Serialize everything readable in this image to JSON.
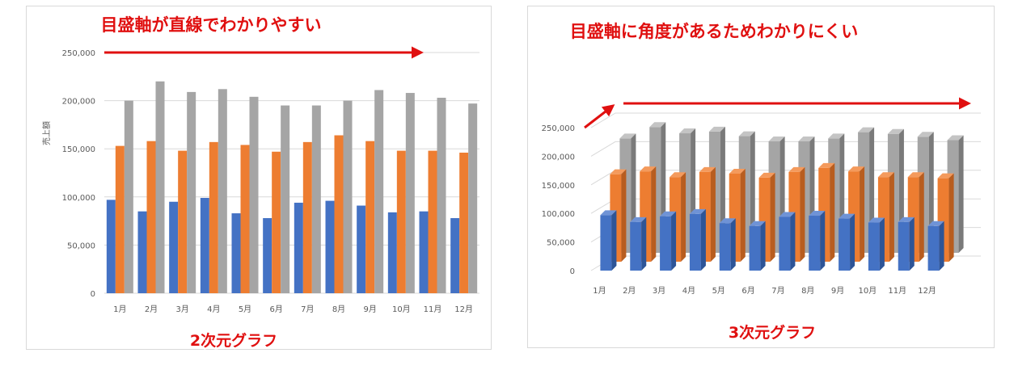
{
  "chart_data": [
    {
      "type": "bar",
      "categories": [
        "1月",
        "2月",
        "3月",
        "4月",
        "5月",
        "6月",
        "7月",
        "8月",
        "9月",
        "10月",
        "11月",
        "12月"
      ],
      "series": [
        {
          "values": [
            97000,
            85000,
            95000,
            99000,
            83000,
            78000,
            94000,
            96000,
            91000,
            84000,
            85000,
            78000
          ]
        },
        {
          "values": [
            153000,
            158000,
            148000,
            157000,
            154000,
            147000,
            157000,
            164000,
            158000,
            148000,
            148000,
            146000
          ]
        },
        {
          "values": [
            200000,
            220000,
            209000,
            212000,
            204000,
            195000,
            195000,
            200000,
            211000,
            208000,
            203000,
            197000
          ]
        }
      ],
      "ylabel": "売上額",
      "ylim": [
        0,
        250000
      ],
      "yticks": [
        "0",
        "50,000",
        "100,000",
        "150,000",
        "200,000",
        "250,000"
      ],
      "grid": true,
      "annotation": "目盛軸が直線でわかりやすい",
      "caption": "2次元グラフ"
    },
    {
      "type": "bar",
      "categories": [
        "1月",
        "2月",
        "3月",
        "4月",
        "5月",
        "6月",
        "7月",
        "8月",
        "9月",
        "10月",
        "11月",
        "12月"
      ],
      "series": [
        {
          "values": [
            97000,
            85000,
            95000,
            99000,
            83000,
            78000,
            94000,
            96000,
            91000,
            84000,
            85000,
            78000
          ]
        },
        {
          "values": [
            153000,
            158000,
            148000,
            157000,
            154000,
            147000,
            157000,
            164000,
            158000,
            148000,
            148000,
            146000
          ]
        },
        {
          "values": [
            200000,
            220000,
            209000,
            212000,
            204000,
            195000,
            195000,
            200000,
            211000,
            208000,
            203000,
            197000
          ]
        }
      ],
      "ylim": [
        0,
        250000
      ],
      "yticks": [
        "0",
        "50,000",
        "100,000",
        "150,000",
        "200,000",
        "250,000"
      ],
      "grid": true,
      "annotation": "目盛軸に角度があるためわかりにくい",
      "caption": "3次元グラフ"
    }
  ],
  "colors": {
    "series": [
      "#4472c4",
      "#ed7d31",
      "#a5a5a5"
    ],
    "series_top": [
      "#6f93d6",
      "#f49a5c",
      "#c4c4c4"
    ],
    "series_side": [
      "#2e5597",
      "#b85d1f",
      "#7a7a7a"
    ],
    "grid": "#d9d9d9",
    "annotation": "#e01010"
  }
}
